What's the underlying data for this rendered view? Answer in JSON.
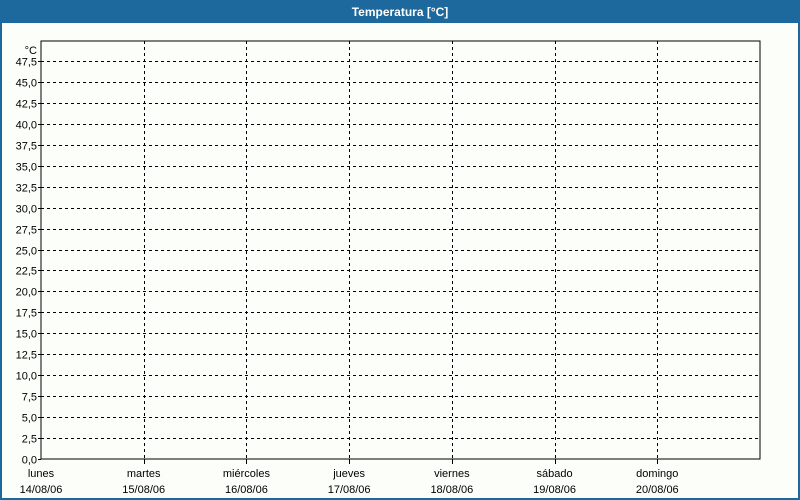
{
  "window": {
    "title": "Temperatura [°C]",
    "colors": {
      "titlebar_bg": "#1d689c",
      "title_text": "#ffffff",
      "window_border": "#1d689c",
      "background": "#fcfff9",
      "axis": "#000000",
      "grid": "#000000",
      "label_text": "#000000"
    }
  },
  "chart_data": {
    "type": "line",
    "title": "Temperatura [°C]",
    "grid": "dashed",
    "legend": "none",
    "plot_background": "#fcfff9",
    "y_axis": {
      "unit_label": "°C",
      "min": 0,
      "max": 47.5,
      "step": 2.5,
      "tick_labels_top_to_bottom": [
        "47,5",
        "45,0",
        "42,5",
        "40,0",
        "37,5",
        "35,0",
        "32,5",
        "30,0",
        "27,5",
        "25,0",
        "22,5",
        "20,0",
        "17,5",
        "15,0",
        "12,5",
        "10,0",
        "7,5",
        "5,0",
        "2,5",
        "0,0"
      ]
    },
    "x_axis": {
      "categories": [
        {
          "name": "lunes",
          "date": "14/08/06"
        },
        {
          "name": "martes",
          "date": "15/08/06"
        },
        {
          "name": "miércoles",
          "date": "16/08/06"
        },
        {
          "name": "jueves",
          "date": "17/08/06"
        },
        {
          "name": "viernes",
          "date": "18/08/06"
        },
        {
          "name": "sábado",
          "date": "19/08/06"
        },
        {
          "name": "domingo",
          "date": "20/08/06"
        }
      ]
    },
    "series": []
  }
}
